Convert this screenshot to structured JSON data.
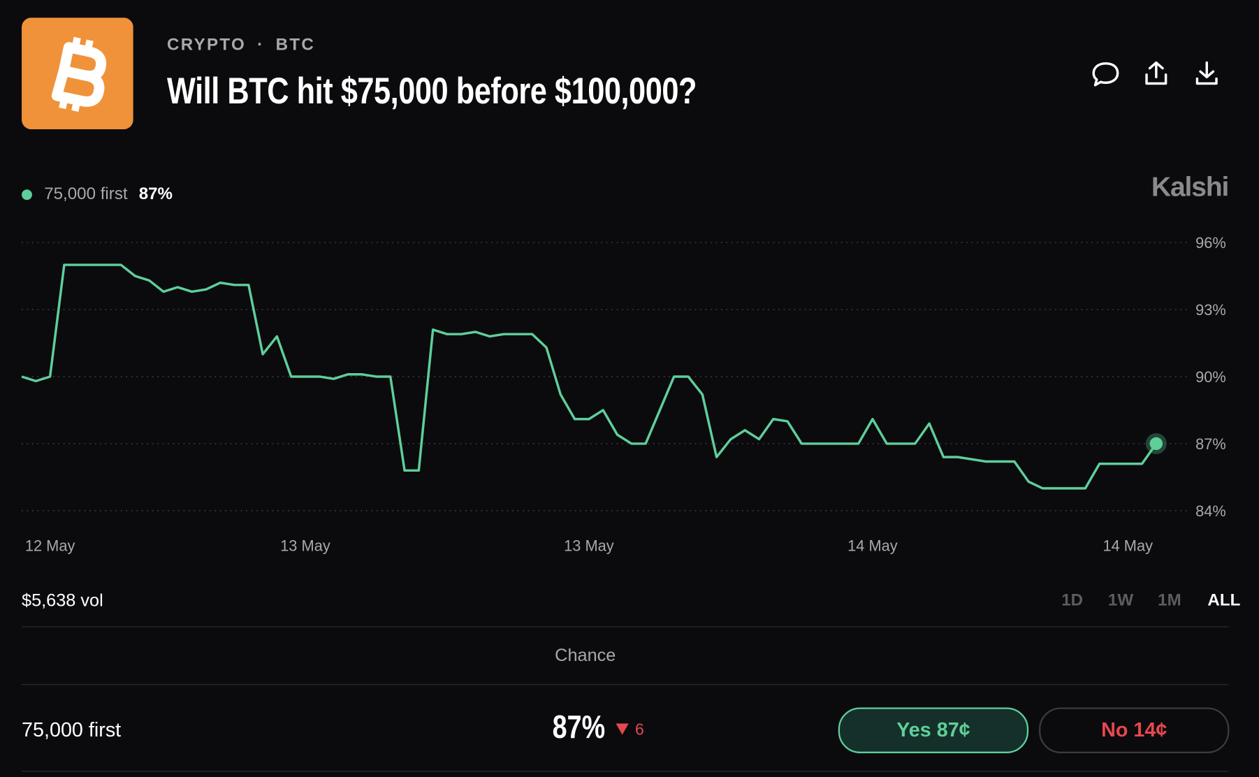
{
  "header": {
    "category": "CRYPTO",
    "ticker": "BTC",
    "title": "Will BTC hit $75,000 before $100,000?"
  },
  "brand": "Kalshi",
  "chart_data": {
    "type": "line",
    "categories": [
      null,
      null,
      "12 May",
      null,
      null,
      null,
      null,
      null,
      null,
      null,
      null,
      null,
      null,
      null,
      null,
      null,
      null,
      null,
      null,
      null,
      "13 May",
      null,
      null,
      null,
      null,
      null,
      null,
      null,
      null,
      null,
      null,
      null,
      null,
      null,
      null,
      null,
      null,
      null,
      null,
      null,
      "13 May",
      null,
      null,
      null,
      null,
      null,
      null,
      null,
      null,
      null,
      null,
      null,
      null,
      null,
      null,
      null,
      null,
      null,
      null,
      null,
      "14 May",
      null,
      null,
      null,
      null,
      null,
      null,
      null,
      null,
      null,
      null,
      null,
      null,
      null,
      null,
      null,
      null,
      null,
      "14 May",
      null,
      null
    ],
    "series": [
      {
        "name": "75,000 first",
        "color": "#5fcf9a",
        "values": [
          90.0,
          89.8,
          90.0,
          95.0,
          95.0,
          95.0,
          95.0,
          95.0,
          94.5,
          94.3,
          93.8,
          94.0,
          93.8,
          93.9,
          94.2,
          94.1,
          94.1,
          91.0,
          91.8,
          90.0,
          90.0,
          90.0,
          89.9,
          90.1,
          90.1,
          90.0,
          90.0,
          85.8,
          85.8,
          92.1,
          91.9,
          91.9,
          92.0,
          91.8,
          91.9,
          91.9,
          91.9,
          91.3,
          89.2,
          88.1,
          88.1,
          88.5,
          87.4,
          87.0,
          87.0,
          88.5,
          90.0,
          90.0,
          89.2,
          86.4,
          87.2,
          87.6,
          87.2,
          88.1,
          88.0,
          87.0,
          87.0,
          87.0,
          87.0,
          87.0,
          88.1,
          87.0,
          87.0,
          87.0,
          87.9,
          86.4,
          86.4,
          86.3,
          86.2,
          86.2,
          86.2,
          85.3,
          85.0,
          85.0,
          85.0,
          85.0,
          86.1,
          86.1,
          86.1,
          86.1,
          87.0
        ]
      }
    ],
    "current_label": "87%",
    "ylim": [
      84,
      96
    ],
    "yticks": [
      {
        "value": 84,
        "label": "84%"
      },
      {
        "value": 87,
        "label": "87%"
      },
      {
        "value": 90,
        "label": "90%"
      },
      {
        "value": 93,
        "label": "93%"
      },
      {
        "value": 96,
        "label": "96%"
      }
    ],
    "grid": true
  },
  "footer": {
    "volume": "$5,638 vol",
    "ranges": [
      "1D",
      "1W",
      "1M",
      "ALL"
    ]
  },
  "table": {
    "header": "Chance",
    "rows": [
      {
        "name": "75,000 first",
        "chance": "87%",
        "change": "6",
        "yes": "Yes 87¢",
        "no": "No 14¢"
      }
    ]
  }
}
